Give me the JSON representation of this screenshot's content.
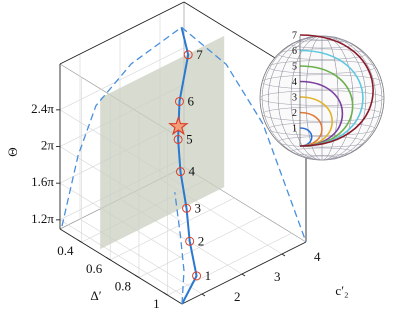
{
  "chart_data": {
    "type": "line3d",
    "xlabel": "Δ′",
    "ylabel": "c′₂",
    "zlabel": "Θ",
    "xlim": [
      0.25,
      1.1
    ],
    "xticks": [
      0.4,
      0.6,
      0.8,
      1
    ],
    "ylim": [
      1.5,
      4.6
    ],
    "yticks": [
      2,
      3,
      4
    ],
    "zlim": [
      1.1,
      2.9
    ],
    "zticks": [
      {
        "value": 1.2,
        "label": "1.2π"
      },
      {
        "value": 1.6,
        "label": "1.6π"
      },
      {
        "value": 2,
        "label": "2π"
      },
      {
        "value": 2.4,
        "label": "2.4π"
      }
    ],
    "grid": true,
    "series": [
      {
        "style": "solid",
        "color": "#2a78d0",
        "x": [
          1.1,
          1.09,
          1.07,
          1.02,
          0.95,
          0.85,
          0.72,
          0.53,
          0.4
        ],
        "y": [
          1.5,
          1.9,
          1.8,
          1.9,
          2.0,
          2.3,
          2.8,
          3.7,
          4.0
        ],
        "z": [
          1.1,
          1.31,
          1.69,
          1.98,
          2.29,
          2.48,
          2.66,
          2.79,
          2.9
        ]
      },
      {
        "style": "dashed",
        "color": "#4a8fdc",
        "x": [
          0.25,
          0.25,
          0.25,
          0.3,
          0.4
        ],
        "y": [
          1.55,
          1.95,
          2.4,
          3.1,
          4.0
        ],
        "z": [
          1.12,
          1.8,
          2.25,
          2.6,
          2.9
        ]
      },
      {
        "style": "dashed",
        "color": "#4a8fdc",
        "x": [
          0.4,
          0.6,
          0.8,
          0.95,
          1.1
        ],
        "y": [
          4.0,
          4.4,
          4.6,
          4.6,
          4.6
        ],
        "z": [
          2.9,
          2.6,
          2.1,
          1.6,
          1.1
        ]
      },
      {
        "style": "dashed",
        "color": "#4a8fdc",
        "x": [
          1.1,
          1.1,
          1.06,
          0.98
        ],
        "y": [
          1.5,
          1.55,
          1.6,
          1.75
        ],
        "z": [
          1.1,
          1.45,
          1.8,
          2.15
        ]
      }
    ],
    "markers": {
      "color": "#d9412c",
      "labels": [
        "1",
        "2",
        "3",
        "4",
        "5",
        "6",
        "7"
      ],
      "x": [
        1.09,
        1.07,
        1.02,
        0.95,
        0.85,
        0.72,
        0.53
      ],
      "y": [
        1.9,
        1.8,
        1.9,
        2.0,
        2.3,
        2.8,
        3.7
      ],
      "z": [
        1.31,
        1.69,
        1.98,
        2.29,
        2.48,
        2.66,
        2.79
      ]
    },
    "star": {
      "color": "#d9412c",
      "x": 0.81,
      "y": 2.45,
      "z": 2.55
    },
    "plane": {
      "color": "#c9cfc0",
      "x": 0.53,
      "ylim": [
        1.5,
        4.6
      ],
      "zlim": [
        1.15,
        2.8
      ]
    },
    "inset": {
      "labels": [
        "1",
        "2",
        "3",
        "4",
        "5",
        "6",
        "7"
      ],
      "colors": [
        "#2b6fd6",
        "#e07b39",
        "#e3b22c",
        "#7b3fa0",
        "#6ab04c",
        "#5ec8e0",
        "#8b1a2b"
      ]
    }
  }
}
